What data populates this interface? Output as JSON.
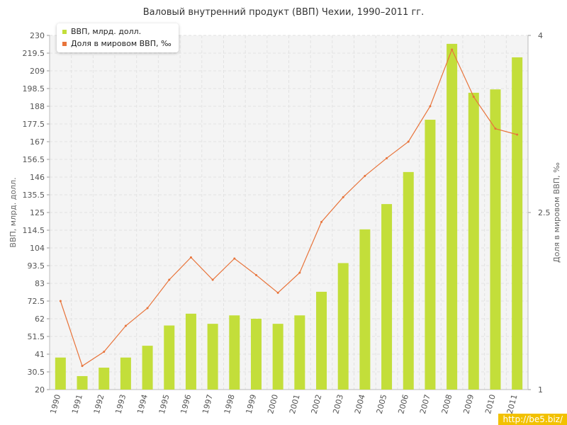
{
  "chart_data": {
    "type": "bar",
    "title": "Валовый внутренний продукт (ВВП) Чехии, 1990–2011 гг.",
    "ylabel": "ВВП, млрд. долл.",
    "y2label": "Доля в мировом ВВП, ‰",
    "ylim": [
      20,
      230
    ],
    "y2lim": [
      1,
      4
    ],
    "yticks": [
      "20",
      "30.5",
      "41",
      "51.5",
      "62",
      "72.5",
      "83",
      "93.5",
      "104",
      "114.5",
      "125",
      "135.5",
      "146",
      "156.5",
      "167",
      "177.5",
      "188",
      "198.5",
      "209",
      "219.5",
      "230"
    ],
    "y2ticks": [
      "1",
      "2.5",
      "4"
    ],
    "categories": [
      "1990",
      "1991",
      "1992",
      "1993",
      "1994",
      "1995",
      "1996",
      "1997",
      "1998",
      "1999",
      "2000",
      "2001",
      "2002",
      "2003",
      "2004",
      "2005",
      "2006",
      "2007",
      "2008",
      "2009",
      "2010",
      "2011"
    ],
    "series": [
      {
        "name": "ВВП, млрд. долл.",
        "type": "bar",
        "axis": "left",
        "color": "#c3de3a",
        "values": [
          39,
          28,
          33,
          39,
          46,
          58,
          65,
          59,
          64,
          62,
          59,
          64,
          78,
          95,
          115,
          130,
          149,
          180,
          225,
          196,
          198,
          217
        ]
      },
      {
        "name": "Доля в мировом ВВП, ‰",
        "type": "line",
        "axis": "right",
        "color": "#e8743b",
        "values": [
          1.75,
          1.2,
          1.32,
          1.54,
          1.69,
          1.93,
          2.12,
          1.93,
          2.11,
          1.97,
          1.82,
          1.99,
          2.42,
          2.63,
          2.81,
          2.96,
          3.1,
          3.4,
          3.88,
          3.48,
          3.21,
          3.16
        ]
      }
    ],
    "grid": true,
    "legend_position": "top-left"
  },
  "watermark": "http://be5.biz/"
}
